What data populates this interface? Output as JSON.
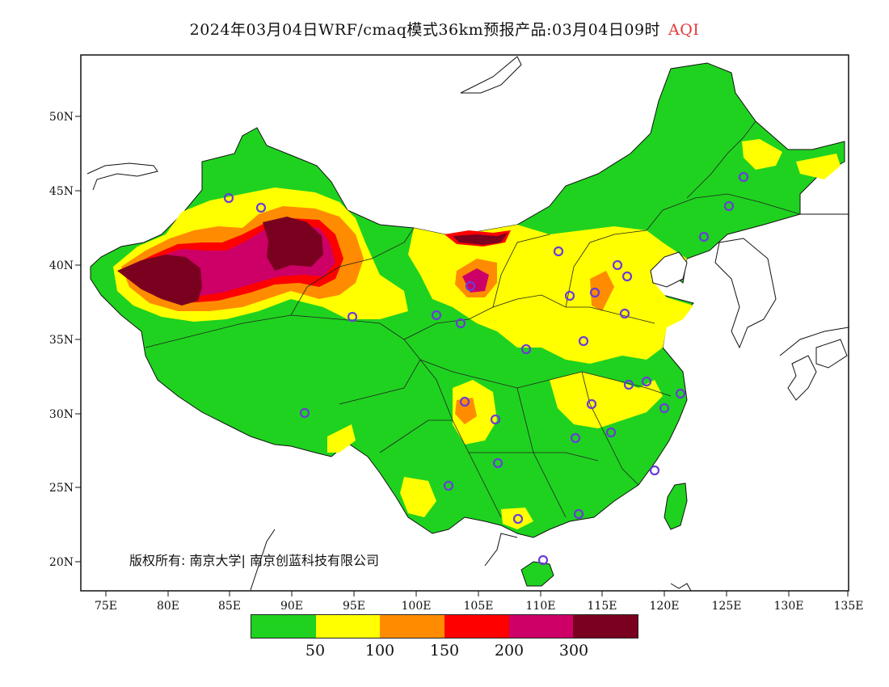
{
  "title": {
    "main": "2024年03月04日WRF/cmaq模式36km预报产品:03月04日09时",
    "variable": "AQI"
  },
  "axes": {
    "lat_labels": [
      "50N",
      "45N",
      "40N",
      "35N",
      "30N",
      "25N",
      "20N"
    ],
    "lon_labels": [
      "75E",
      "80E",
      "85E",
      "90E",
      "95E",
      "100E",
      "105E",
      "110E",
      "115E",
      "120E",
      "125E",
      "130E",
      "135E"
    ]
  },
  "copyright": "版权所有: 南京大学| 南京创蓝科技有限公司",
  "legend": {
    "colors": [
      "#1fd21f",
      "#ffff00",
      "#ff8c00",
      "#ff0000",
      "#cc0066",
      "#7a0020"
    ],
    "labels": [
      "50",
      "100",
      "150",
      "200",
      "300"
    ]
  },
  "colors": {
    "ocean": "#ffffff",
    "good": "#1fd21f",
    "moderate": "#ffff00",
    "usg": "#ff8c00",
    "unhealthy": "#ff0000",
    "very_unhealthy": "#cc0066",
    "hazardous": "#7a0020",
    "station": "#6a3cd8"
  }
}
